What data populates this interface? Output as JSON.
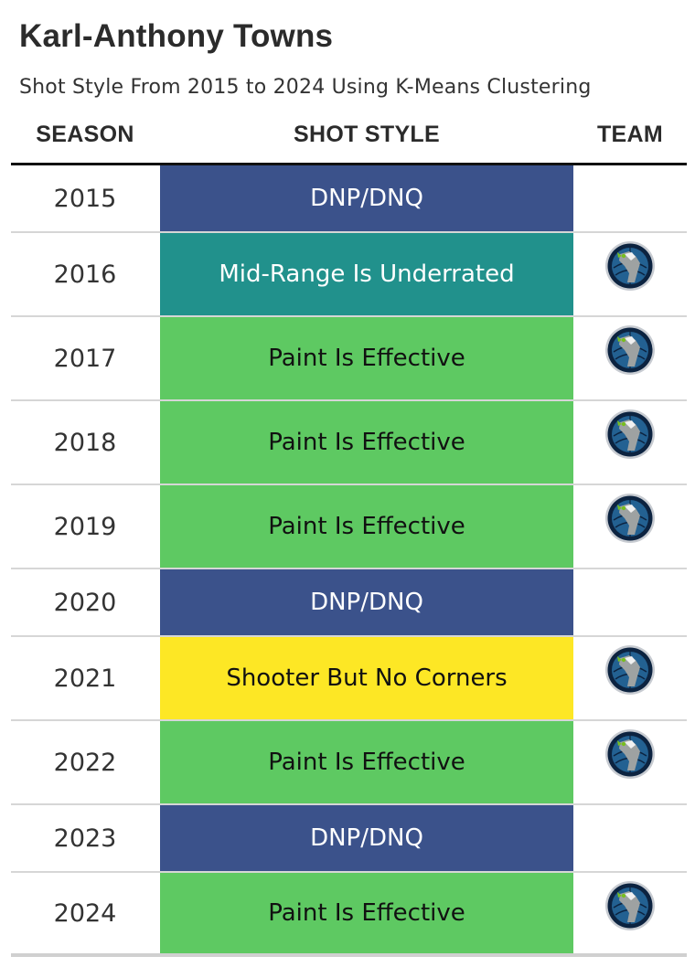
{
  "title": "Karl-Anthony Towns",
  "subtitle": "Shot Style From 2015 to 2024 Using K-Means Clustering",
  "headers": {
    "season": "SEASON",
    "style": "SHOT STYLE",
    "team": "TEAM"
  },
  "colors": {
    "DNP/DNQ": {
      "bg": "#3b528b",
      "fg": "#ffffff"
    },
    "Mid-Range Is Underrated": {
      "bg": "#21918c",
      "fg": "#ffffff"
    },
    "Paint Is Effective": {
      "bg": "#5ec962",
      "fg": "#111111"
    },
    "Shooter But No Corners": {
      "bg": "#fde725",
      "fg": "#111111"
    }
  },
  "chart_data": {
    "type": "table",
    "columns": [
      "SEASON",
      "SHOT STYLE",
      "TEAM"
    ],
    "rows": [
      {
        "season": "2015",
        "style": "DNP/DNQ",
        "team": null
      },
      {
        "season": "2016",
        "style": "Mid-Range Is Underrated",
        "team": "timberwolves-logo"
      },
      {
        "season": "2017",
        "style": "Paint Is Effective",
        "team": "timberwolves-logo"
      },
      {
        "season": "2018",
        "style": "Paint Is Effective",
        "team": "timberwolves-logo"
      },
      {
        "season": "2019",
        "style": "Paint Is Effective",
        "team": "timberwolves-logo"
      },
      {
        "season": "2020",
        "style": "DNP/DNQ",
        "team": null
      },
      {
        "season": "2021",
        "style": "Shooter But No Corners",
        "team": "timberwolves-logo"
      },
      {
        "season": "2022",
        "style": "Paint Is Effective",
        "team": "timberwolves-logo"
      },
      {
        "season": "2023",
        "style": "DNP/DNQ",
        "team": null
      },
      {
        "season": "2024",
        "style": "Paint Is Effective",
        "team": "timberwolves-logo"
      }
    ]
  }
}
